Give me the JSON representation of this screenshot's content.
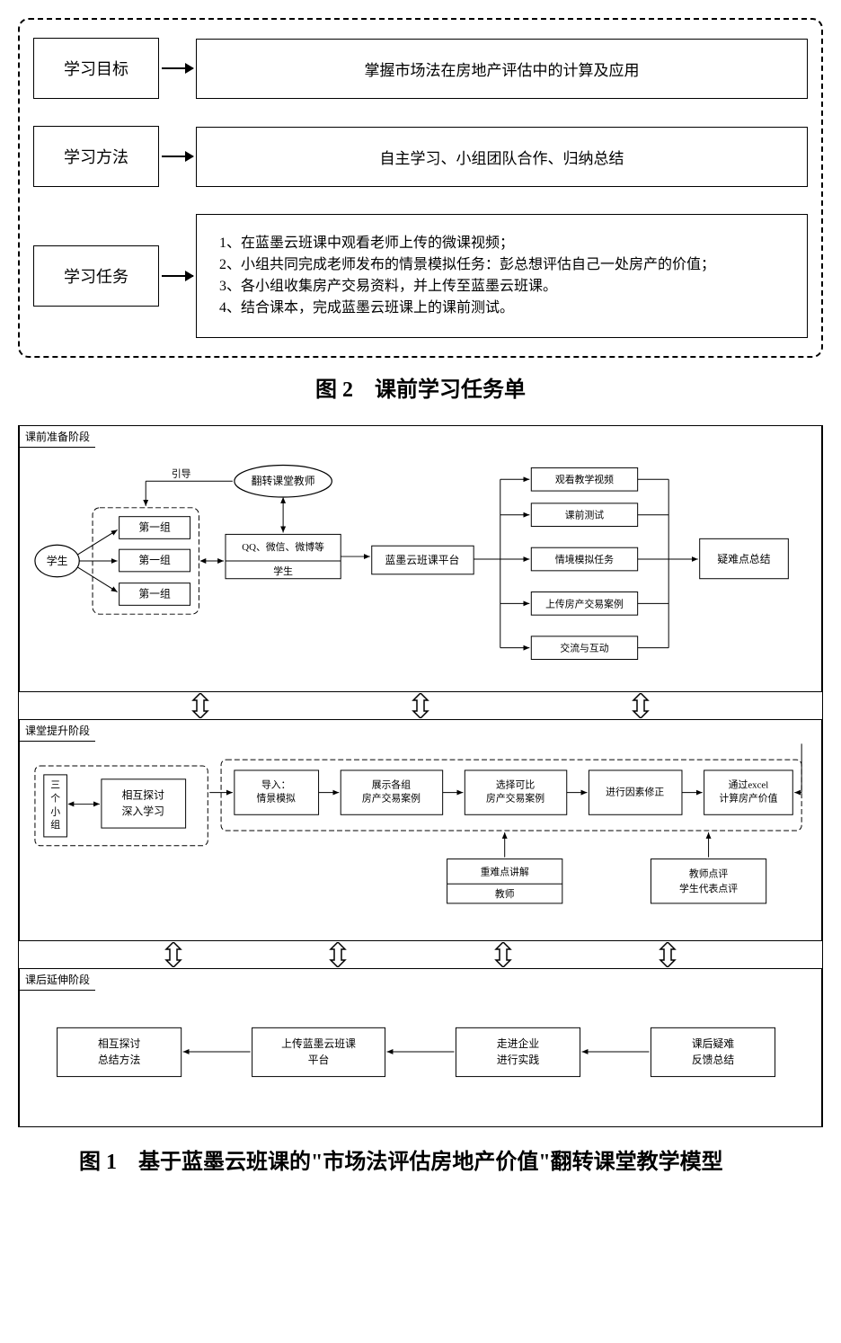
{
  "fig2": {
    "rows": [
      {
        "label": "学习目标",
        "content": "掌握市场法在房地产评估中的计算及应用",
        "align": "center"
      },
      {
        "label": "学习方法",
        "content": "自主学习、小组团队合作、归纳总结",
        "align": "center"
      },
      {
        "label": "学习任务",
        "content": "1、在蓝墨云班课中观看老师上传的微课视频；\n2、小组共同完成老师发布的情景模拟任务：彭总想评估自己一处房产的价值；\n3、各小组收集房产交易资料，并上传至蓝墨云班课。\n4、结合课本，完成蓝墨云班课上的课前测试。",
        "align": "left"
      }
    ],
    "caption": "图 2　课前学习任务单"
  },
  "fig1": {
    "phase1": {
      "title": "课前准备阶段",
      "student": "学生",
      "groups": [
        "第一组",
        "第一组",
        "第一组"
      ],
      "guide": "引导",
      "teacher": "翻转课堂教师",
      "qq_top": "QQ、微信、微博等",
      "qq_bottom": "学生",
      "platform": "蓝墨云班课平台",
      "activities": [
        "观看教学视频",
        "课前测试",
        "情境模拟任务",
        "上传房产交易案例",
        "交流与互动"
      ],
      "summary": "疑难点总结"
    },
    "phase2": {
      "title": "课堂提升阶段",
      "groups": "三个小组",
      "discuss": "相互探讨\n深入学习",
      "steps": [
        "导入：\n情景模拟",
        "展示各组\n房产交易案例",
        "选择可比\n房产交易案例",
        "进行因素修正",
        "通过excel\n计算房产价值"
      ],
      "teacher_top": "重难点讲解",
      "teacher_bottom": "教师",
      "review": "教师点评\n学生代表点评"
    },
    "phase3": {
      "title": "课后延伸阶段",
      "steps": [
        "相互探讨\n总结方法",
        "上传蓝墨云班课\n平台",
        "走进企业\n进行实践",
        "课后疑难\n反馈总结"
      ]
    },
    "caption": "图 1　基于蓝墨云班课的\"市场法评估房地产价值\"翻转课堂教学模型",
    "colors": {
      "stroke": "#000000",
      "bg": "#ffffff"
    }
  }
}
